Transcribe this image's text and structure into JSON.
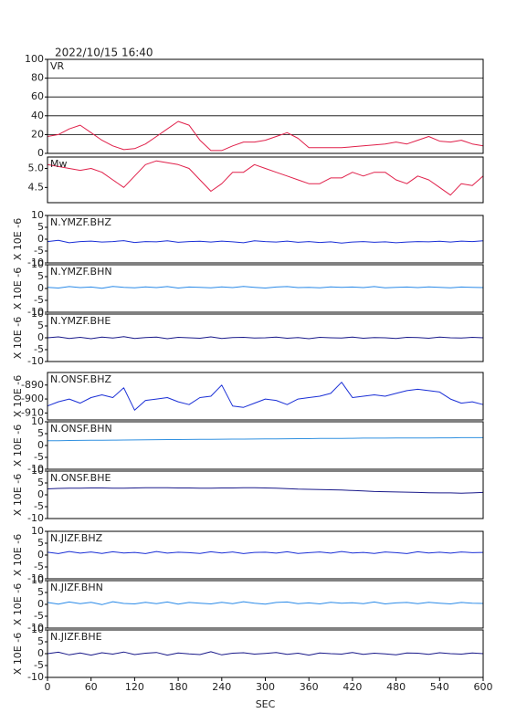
{
  "chart_data": [
    {
      "type": "line",
      "title": "2022/10/15 16:40",
      "label": "VR",
      "color": "#e0204a",
      "grid": true,
      "xlim": [
        0,
        600
      ],
      "ylim": [
        0,
        100
      ],
      "yticks": [
        0,
        20,
        40,
        60,
        80,
        100
      ],
      "x": [
        0,
        15,
        30,
        45,
        60,
        75,
        90,
        105,
        120,
        135,
        150,
        165,
        180,
        195,
        210,
        225,
        240,
        255,
        270,
        285,
        300,
        315,
        330,
        345,
        360,
        375,
        390,
        405,
        420,
        435,
        450,
        465,
        480,
        495,
        510,
        525,
        540,
        555,
        570,
        585,
        600
      ],
      "values": [
        18,
        20,
        26,
        30,
        22,
        14,
        8,
        4,
        5,
        10,
        18,
        26,
        34,
        30,
        14,
        3,
        3,
        8,
        12,
        12,
        14,
        18,
        22,
        16,
        6,
        6,
        6,
        6,
        7,
        8,
        9,
        10,
        12,
        10,
        14,
        18,
        13,
        12,
        14,
        10,
        8
      ]
    },
    {
      "type": "line",
      "label": "Mw",
      "color": "#e0204a",
      "xlim": [
        0,
        600
      ],
      "ylim": [
        4.1,
        5.3
      ],
      "yticks": [
        4.5,
        {
          "value": 5,
          "label": "5.0"
        }
      ],
      "x": [
        0,
        15,
        30,
        45,
        60,
        75,
        90,
        105,
        120,
        135,
        150,
        165,
        180,
        195,
        210,
        225,
        240,
        255,
        270,
        285,
        300,
        315,
        330,
        345,
        360,
        375,
        390,
        405,
        420,
        435,
        450,
        465,
        480,
        495,
        510,
        525,
        540,
        555,
        570,
        585,
        600
      ],
      "values": [
        5.1,
        5.05,
        5.0,
        4.95,
        5.0,
        4.9,
        4.7,
        4.5,
        4.8,
        5.1,
        5.2,
        5.15,
        5.1,
        5.0,
        4.7,
        4.4,
        4.6,
        4.9,
        4.9,
        5.1,
        5.0,
        4.9,
        4.8,
        4.7,
        4.6,
        4.6,
        4.75,
        4.75,
        4.9,
        4.8,
        4.9,
        4.9,
        4.7,
        4.6,
        4.8,
        4.7,
        4.5,
        4.3,
        4.6,
        4.55,
        4.8
      ]
    },
    {
      "type": "line",
      "label": "N.YMZF.BHZ",
      "ylabel": "X 10E -6",
      "color": "#1a2fd6",
      "xlim": [
        0,
        600
      ],
      "ylim": [
        -10,
        10
      ],
      "yticks": [
        -10,
        -5,
        0,
        5,
        10
      ],
      "x": [
        0,
        15,
        30,
        45,
        60,
        75,
        90,
        105,
        120,
        135,
        150,
        165,
        180,
        195,
        210,
        225,
        240,
        255,
        270,
        285,
        300,
        315,
        330,
        345,
        360,
        375,
        390,
        405,
        420,
        435,
        450,
        465,
        480,
        495,
        510,
        525,
        540,
        555,
        570,
        585,
        600
      ],
      "values": [
        -1,
        -0.5,
        -1.5,
        -1,
        -0.8,
        -1.2,
        -1,
        -0.6,
        -1.4,
        -1,
        -1.1,
        -0.7,
        -1.3,
        -1,
        -0.9,
        -1.2,
        -0.8,
        -1.1,
        -1.5,
        -0.7,
        -1,
        -1.2,
        -0.8,
        -1.3,
        -1,
        -1.4,
        -1.1,
        -1.6,
        -1.2,
        -1,
        -1.3,
        -1.1,
        -1.5,
        -1.2,
        -1,
        -1.1,
        -0.9,
        -1.2,
        -0.8,
        -1,
        -0.7
      ]
    },
    {
      "type": "line",
      "label": "N.YMZF.BHN",
      "ylabel": "X 10E -6",
      "color": "#2a8ae8",
      "xlim": [
        0,
        600
      ],
      "ylim": [
        -10,
        10
      ],
      "yticks": [
        -10,
        -5,
        0,
        5,
        10
      ],
      "x": [
        0,
        15,
        30,
        45,
        60,
        75,
        90,
        105,
        120,
        135,
        150,
        165,
        180,
        195,
        210,
        225,
        240,
        255,
        270,
        285,
        300,
        315,
        330,
        345,
        360,
        375,
        390,
        405,
        420,
        435,
        450,
        465,
        480,
        495,
        510,
        525,
        540,
        555,
        570,
        585,
        600
      ],
      "values": [
        0.5,
        0.2,
        0.8,
        0.4,
        0.6,
        0.1,
        0.9,
        0.5,
        0.3,
        0.7,
        0.4,
        0.8,
        0.2,
        0.6,
        0.5,
        0.3,
        0.7,
        0.4,
        0.9,
        0.5,
        0.2,
        0.6,
        0.8,
        0.4,
        0.5,
        0.3,
        0.7,
        0.5,
        0.6,
        0.4,
        0.8,
        0.3,
        0.5,
        0.6,
        0.4,
        0.7,
        0.5,
        0.3,
        0.6,
        0.5,
        0.4
      ]
    },
    {
      "type": "line",
      "label": "N.YMZF.BHE",
      "ylabel": "X 10E -6",
      "color": "#1a1a8a",
      "xlim": [
        0,
        600
      ],
      "ylim": [
        -10,
        10
      ],
      "yticks": [
        -10,
        -5,
        0,
        5,
        10
      ],
      "x": [
        0,
        15,
        30,
        45,
        60,
        75,
        90,
        105,
        120,
        135,
        150,
        165,
        180,
        195,
        210,
        225,
        240,
        255,
        270,
        285,
        300,
        315,
        330,
        345,
        360,
        375,
        390,
        405,
        420,
        435,
        450,
        465,
        480,
        495,
        510,
        525,
        540,
        555,
        570,
        585,
        600
      ],
      "values": [
        0,
        0.4,
        -0.3,
        0.2,
        -0.4,
        0.3,
        -0.1,
        0.5,
        -0.3,
        0.1,
        0.3,
        -0.4,
        0.2,
        0,
        -0.2,
        0.4,
        -0.3,
        0.1,
        0.2,
        -0.1,
        0,
        0.3,
        -0.2,
        0.1,
        -0.4,
        0.2,
        0,
        -0.1,
        0.3,
        -0.2,
        0.1,
        0,
        -0.3,
        0.2,
        0.1,
        -0.2,
        0.3,
        0,
        -0.1,
        0.2,
        0
      ]
    },
    {
      "type": "line",
      "label": "N.ONSF.BHZ",
      "ylabel": "X 10E -6",
      "color": "#1a2fd6",
      "xlim": [
        0,
        600
      ],
      "ylim": [
        -915,
        -881
      ],
      "yticks": [
        -910,
        -900,
        -890
      ],
      "x": [
        0,
        15,
        30,
        45,
        60,
        75,
        90,
        105,
        120,
        135,
        150,
        165,
        180,
        195,
        210,
        225,
        240,
        255,
        270,
        285,
        300,
        315,
        330,
        345,
        360,
        375,
        390,
        405,
        420,
        435,
        450,
        465,
        480,
        495,
        510,
        525,
        540,
        555,
        570,
        585,
        600
      ],
      "values": [
        -905,
        -902,
        -900,
        -903,
        -899,
        -897,
        -899,
        -892,
        -908,
        -901,
        -900,
        -899,
        -902,
        -904,
        -899,
        -898,
        -890,
        -905,
        -906,
        -903,
        -900,
        -901,
        -904,
        -900,
        -899,
        -898,
        -896,
        -888,
        -899,
        -898,
        -897,
        -898,
        -896,
        -894,
        -893,
        -894,
        -895,
        -900,
        -903,
        -902,
        -904
      ]
    },
    {
      "type": "line",
      "label": "N.ONSF.BHN",
      "ylabel": "X 10E -6",
      "color": "#3090e0",
      "xlim": [
        0,
        600
      ],
      "ylim": [
        -10,
        10
      ],
      "yticks": [
        -10,
        -5,
        0,
        5,
        10
      ],
      "x": [
        0,
        15,
        30,
        45,
        60,
        75,
        90,
        105,
        120,
        135,
        150,
        165,
        180,
        195,
        210,
        225,
        240,
        255,
        270,
        285,
        300,
        315,
        330,
        345,
        360,
        375,
        390,
        405,
        420,
        435,
        450,
        465,
        480,
        495,
        510,
        525,
        540,
        555,
        570,
        585,
        600
      ],
      "values": [
        2.0,
        2.05,
        2.1,
        2.15,
        2.2,
        2.2,
        2.25,
        2.3,
        2.35,
        2.4,
        2.45,
        2.5,
        2.5,
        2.55,
        2.6,
        2.6,
        2.65,
        2.7,
        2.7,
        2.75,
        2.8,
        2.8,
        2.85,
        2.9,
        2.9,
        2.95,
        3.0,
        3.0,
        3.05,
        3.1,
        3.1,
        3.1,
        3.15,
        3.2,
        3.2,
        3.2,
        3.25,
        3.25,
        3.3,
        3.3,
        3.3
      ]
    },
    {
      "type": "line",
      "label": "N.ONSF.BHE",
      "ylabel": "X 10E -6",
      "color": "#1a1a8a",
      "xlim": [
        0,
        600
      ],
      "ylim": [
        -10,
        10
      ],
      "yticks": [
        -10,
        -5,
        0,
        5,
        10
      ],
      "x": [
        0,
        15,
        30,
        45,
        60,
        75,
        90,
        105,
        120,
        135,
        150,
        165,
        180,
        195,
        210,
        225,
        240,
        255,
        270,
        285,
        300,
        315,
        330,
        345,
        360,
        375,
        390,
        405,
        420,
        435,
        450,
        465,
        480,
        495,
        510,
        525,
        540,
        555,
        570,
        585,
        600
      ],
      "values": [
        2.5,
        2.7,
        2.8,
        2.8,
        2.9,
        2.9,
        2.8,
        2.8,
        2.9,
        3.0,
        3.0,
        3.0,
        2.9,
        2.9,
        2.8,
        2.8,
        2.9,
        2.9,
        3.0,
        3.0,
        2.9,
        2.8,
        2.6,
        2.4,
        2.3,
        2.2,
        2.1,
        2.0,
        1.8,
        1.6,
        1.4,
        1.3,
        1.2,
        1.1,
        1.0,
        0.9,
        0.8,
        0.8,
        0.7,
        0.8,
        1.0
      ]
    },
    {
      "type": "line",
      "label": "N.JIZF.BHZ",
      "ylabel": "X 10E -6",
      "color": "#1a2fd6",
      "xlim": [
        0,
        600
      ],
      "ylim": [
        -10,
        10
      ],
      "yticks": [
        -10,
        -5,
        0,
        5,
        10
      ],
      "x": [
        0,
        15,
        30,
        45,
        60,
        75,
        90,
        105,
        120,
        135,
        150,
        165,
        180,
        195,
        210,
        225,
        240,
        255,
        270,
        285,
        300,
        315,
        330,
        345,
        360,
        375,
        390,
        405,
        420,
        435,
        450,
        465,
        480,
        495,
        510,
        525,
        540,
        555,
        570,
        585,
        600
      ],
      "values": [
        1.2,
        0.6,
        1.5,
        0.8,
        1.3,
        0.7,
        1.4,
        0.9,
        1.1,
        0.6,
        1.5,
        0.8,
        1.2,
        1.0,
        0.7,
        1.4,
        0.9,
        1.3,
        0.6,
        1.1,
        1.2,
        0.8,
        1.4,
        0.7,
        1.0,
        1.3,
        0.8,
        1.5,
        0.9,
        1.1,
        0.7,
        1.3,
        1.0,
        0.6,
        1.4,
        0.9,
        1.2,
        0.8,
        1.3,
        1.0,
        1.1
      ]
    },
    {
      "type": "line",
      "label": "N.JIZF.BHN",
      "ylabel": "X 10E -6",
      "color": "#2a8ae8",
      "xlim": [
        0,
        600
      ],
      "ylim": [
        -10,
        10
      ],
      "yticks": [
        -10,
        -5,
        0,
        5,
        10
      ],
      "x": [
        0,
        15,
        30,
        45,
        60,
        75,
        90,
        105,
        120,
        135,
        150,
        165,
        180,
        195,
        210,
        225,
        240,
        255,
        270,
        285,
        300,
        315,
        330,
        345,
        360,
        375,
        390,
        405,
        420,
        435,
        450,
        465,
        480,
        495,
        510,
        525,
        540,
        555,
        570,
        585,
        600
      ],
      "values": [
        0.8,
        0.1,
        1.0,
        0.3,
        0.9,
        -0.1,
        1.1,
        0.4,
        0.2,
        0.9,
        0.3,
        1.0,
        0.1,
        0.8,
        0.5,
        0.2,
        0.9,
        0.3,
        1.1,
        0.5,
        0.1,
        0.8,
        1.0,
        0.3,
        0.6,
        0.2,
        0.9,
        0.5,
        0.7,
        0.3,
        1.0,
        0.2,
        0.6,
        0.8,
        0.3,
        0.9,
        0.5,
        0.2,
        0.8,
        0.5,
        0.4
      ]
    },
    {
      "type": "line",
      "label": "N.JIZF.BHE",
      "ylabel": "X 10E -6",
      "xlabel": "SEC",
      "color": "#1a1a8a",
      "xlim": [
        0,
        600
      ],
      "ylim": [
        -10,
        10
      ],
      "yticks": [
        -10,
        -5,
        0,
        5,
        10
      ],
      "xticks": [
        0,
        60,
        120,
        180,
        240,
        300,
        360,
        420,
        480,
        540,
        600
      ],
      "x": [
        0,
        15,
        30,
        45,
        60,
        75,
        90,
        105,
        120,
        135,
        150,
        165,
        180,
        195,
        210,
        225,
        240,
        255,
        270,
        285,
        300,
        315,
        330,
        345,
        360,
        375,
        390,
        405,
        420,
        435,
        450,
        465,
        480,
        495,
        510,
        525,
        540,
        555,
        570,
        585,
        600
      ],
      "values": [
        0,
        0.6,
        -0.5,
        0.3,
        -0.6,
        0.4,
        -0.2,
        0.7,
        -0.4,
        0.2,
        0.5,
        -0.6,
        0.3,
        -0.1,
        -0.4,
        0.8,
        -0.5,
        0.2,
        0.4,
        -0.2,
        0.1,
        0.5,
        -0.3,
        0.2,
        -0.6,
        0.3,
        0,
        -0.2,
        0.5,
        -0.3,
        0.2,
        -0.1,
        -0.5,
        0.3,
        0.2,
        -0.3,
        0.4,
        0,
        -0.2,
        0.3,
        0
      ]
    }
  ]
}
